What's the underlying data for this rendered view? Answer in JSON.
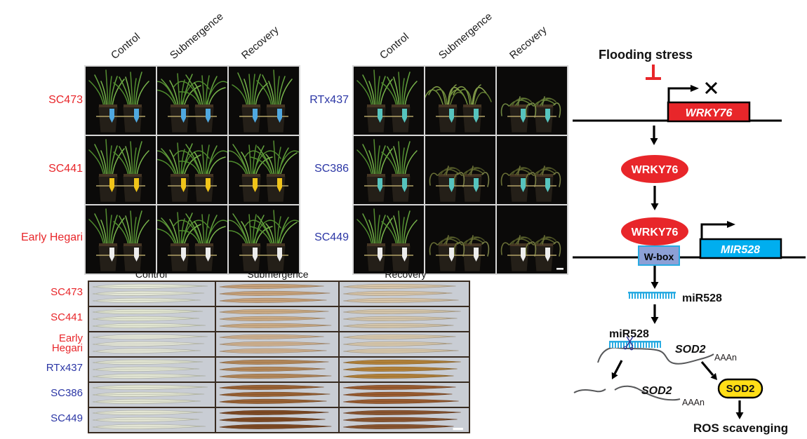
{
  "panelA": {
    "columns": [
      "Control",
      "Submergence",
      "Recovery"
    ],
    "label_color": "#E8262A",
    "rows": [
      {
        "label": "SC473",
        "tag_color": "#4FA8E0",
        "states": [
          "upright",
          "spread",
          "upright"
        ]
      },
      {
        "label": "SC441",
        "tag_color": "#F0C419",
        "states": [
          "upright",
          "spread",
          "spread"
        ]
      },
      {
        "label": "Early Hegari",
        "tag_color": "#EDEDED",
        "states": [
          "upright",
          "spread",
          "spread"
        ]
      }
    ]
  },
  "panelB": {
    "columns": [
      "Control",
      "Submergence",
      "Recovery"
    ],
    "label_color": "#2B36A5",
    "rows": [
      {
        "label": "RTx437",
        "tag_color": "#56C4BE",
        "states": [
          "upright",
          "droopy",
          "wilted"
        ]
      },
      {
        "label": "SC386",
        "tag_color": "#56C4BE",
        "states": [
          "upright",
          "collapsed",
          "collapsed"
        ]
      },
      {
        "label": "SC449",
        "tag_color": "#EDEDED",
        "states": [
          "upright",
          "collapsed",
          "collapsed"
        ]
      }
    ]
  },
  "panelC": {
    "columns": [
      "Control",
      "Submergence",
      "Recovery"
    ],
    "rows": [
      {
        "label": "SC473",
        "color": "#E8262A",
        "leaf_colors": [
          "#e4e7d6",
          "#c8a27a",
          "#d8c5a8"
        ]
      },
      {
        "label": "SC441",
        "color": "#E8262A",
        "leaf_colors": [
          "#e2e6d2",
          "#cbab84",
          "#d5c6ab"
        ]
      },
      {
        "label": "Early Hegari",
        "color": "#E8262A",
        "leaf_colors": [
          "#e5e7d8",
          "#cfb190",
          "#d9c9ad"
        ]
      },
      {
        "label": "RTx437",
        "color": "#2B36A5",
        "leaf_colors": [
          "#e3e6d4",
          "#b4885a",
          "#b3823a"
        ]
      },
      {
        "label": "SC386",
        "color": "#2B36A5",
        "leaf_colors": [
          "#e2e5d2",
          "#9a6234",
          "#9a5c30"
        ]
      },
      {
        "label": "SC449",
        "color": "#2B36A5",
        "leaf_colors": [
          "#e4e6d5",
          "#7e4a24",
          "#8a5530"
        ]
      }
    ]
  },
  "pathway": {
    "title": "Flooding stress",
    "wrky76_gene": "WRKY76",
    "wrky76_protein_1": "WRKY76",
    "wrky76_protein_2": "WRKY76",
    "wbox": "W-box",
    "mir528_gene": "MIR528",
    "mir528_mature": "miR528",
    "mir528_bound": "miR528",
    "sod2_transcript": "SOD2",
    "sod2_cleaved": "SOD2",
    "sod2_protein": "SOD2",
    "polya_transcript": "AAAn",
    "polya_cleaved": "AAAn",
    "ros": "ROS scavenging",
    "colors": {
      "red": "#E8262A",
      "cyan": "#29ABE2",
      "cyan_fill": "#00AEEF",
      "wbox_fill": "#8CA0D6",
      "yellow": "#FFDE17"
    }
  }
}
